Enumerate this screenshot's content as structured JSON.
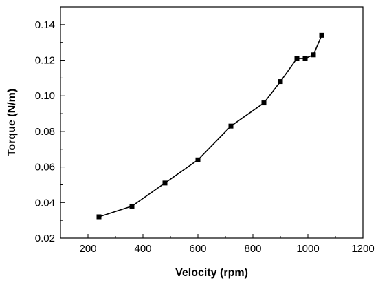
{
  "chart_data": {
    "type": "line",
    "title": "",
    "xlabel": "Velocity (rpm)",
    "ylabel": "Torque (N/m)",
    "xlim": [
      100,
      1200
    ],
    "ylim": [
      0.02,
      0.15
    ],
    "x_ticks": [
      200,
      400,
      600,
      800,
      1000,
      1200
    ],
    "x_tick_labels": [
      "200",
      "400",
      "600",
      "800",
      "1000",
      "1200"
    ],
    "y_ticks": [
      0.02,
      0.04,
      0.06,
      0.08,
      0.1,
      0.12,
      0.14
    ],
    "y_tick_labels": [
      "0.02",
      "0.04",
      "0.06",
      "0.08",
      "0.10",
      "0.12",
      "0.14"
    ],
    "grid": false,
    "marker": "square",
    "line_color": "#000000",
    "series": [
      {
        "x": [
          240,
          360,
          480,
          600,
          720,
          840,
          900,
          960,
          990,
          1020,
          1050
        ],
        "y": [
          0.032,
          0.038,
          0.051,
          0.064,
          0.083,
          0.096,
          0.108,
          0.121,
          0.121,
          0.123,
          0.134
        ]
      }
    ]
  }
}
